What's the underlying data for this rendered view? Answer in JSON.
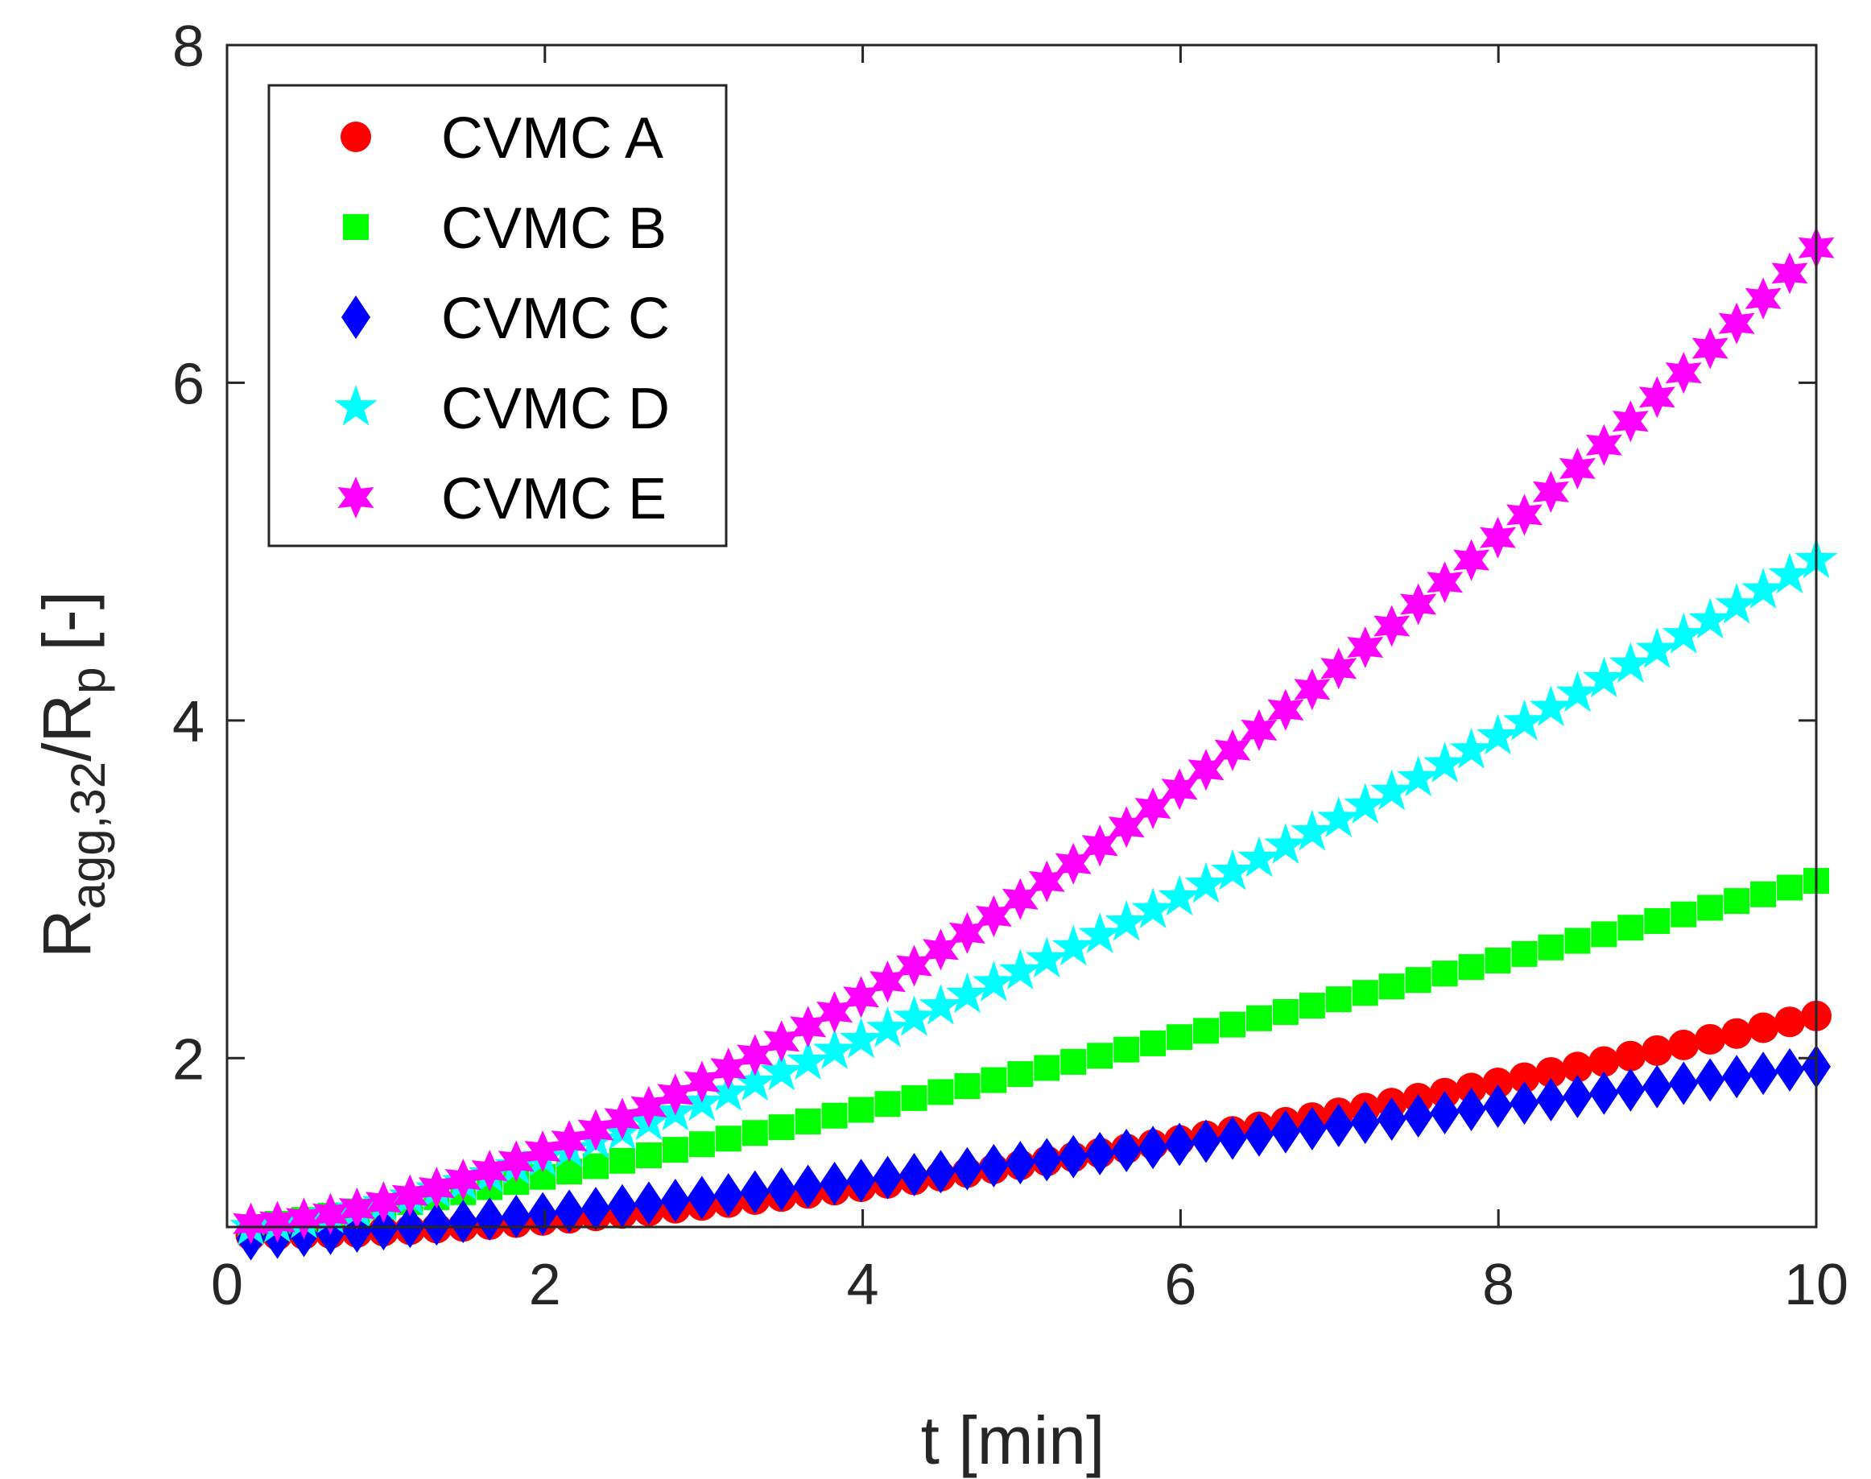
{
  "chart_data": {
    "type": "scatter",
    "title": "",
    "xlabel": "t [min]",
    "ylabel": {
      "base": "R",
      "sub1": "agg,32",
      "slash": "/R",
      "sub2": "p",
      "suffix": "[-]"
    },
    "xlim": [
      0,
      10
    ],
    "ylim": [
      1,
      8
    ],
    "xticks": [
      "0",
      "2",
      "4",
      "6",
      "8",
      "10"
    ],
    "yticks": [
      "2",
      "4",
      "6",
      "8"
    ],
    "xtick_values": [
      0,
      2,
      4,
      6,
      8,
      10
    ],
    "ytick_values": [
      2,
      4,
      6,
      8
    ],
    "grid": false,
    "legend_position": "top-left",
    "x_start": 0.15,
    "x_end": 10,
    "n_points": 60,
    "series": [
      {
        "name": "CVMC A",
        "marker": "circle",
        "color": "#ff0000",
        "y_start": 0.95,
        "y_end": 2.25,
        "curvature": 1.6
      },
      {
        "name": "CVMC B",
        "marker": "square",
        "color": "#00ff00",
        "y_start": 1.0,
        "y_end": 3.05,
        "curvature": 1.15
      },
      {
        "name": "CVMC C",
        "marker": "diamond",
        "color": "#0000ff",
        "y_start": 0.93,
        "y_end": 1.95,
        "curvature": 1.15
      },
      {
        "name": "CVMC D",
        "marker": "star5",
        "color": "#00ffff",
        "y_start": 1.0,
        "y_end": 4.95,
        "curvature": 1.35
      },
      {
        "name": "CVMC E",
        "marker": "star6",
        "color": "#ff00ff",
        "y_start": 1.02,
        "y_end": 6.8,
        "curvature": 1.55
      }
    ]
  }
}
